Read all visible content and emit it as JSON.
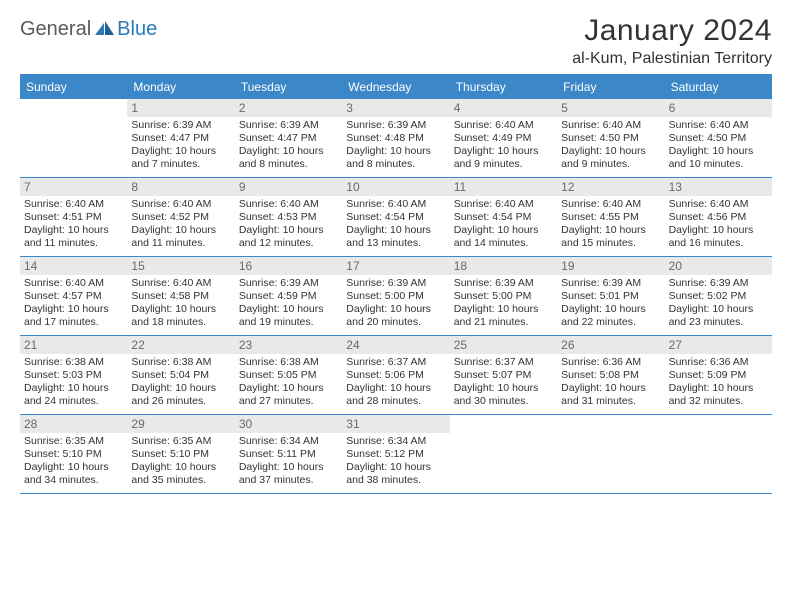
{
  "brand": {
    "general": "General",
    "blue": "Blue"
  },
  "colors": {
    "accent": "#3b87c8",
    "headerBg": "#3b87c8",
    "dayNumBg": "#e9e9e9",
    "text": "#333333"
  },
  "title": "January 2024",
  "subtitle": "al-Kum, Palestinian Territory",
  "weekdays": [
    "Sunday",
    "Monday",
    "Tuesday",
    "Wednesday",
    "Thursday",
    "Friday",
    "Saturday"
  ],
  "weeks": [
    [
      {
        "n": "",
        "sr": "",
        "ss": "",
        "d1": "",
        "d2": ""
      },
      {
        "n": "1",
        "sr": "Sunrise: 6:39 AM",
        "ss": "Sunset: 4:47 PM",
        "d1": "Daylight: 10 hours",
        "d2": "and 7 minutes."
      },
      {
        "n": "2",
        "sr": "Sunrise: 6:39 AM",
        "ss": "Sunset: 4:47 PM",
        "d1": "Daylight: 10 hours",
        "d2": "and 8 minutes."
      },
      {
        "n": "3",
        "sr": "Sunrise: 6:39 AM",
        "ss": "Sunset: 4:48 PM",
        "d1": "Daylight: 10 hours",
        "d2": "and 8 minutes."
      },
      {
        "n": "4",
        "sr": "Sunrise: 6:40 AM",
        "ss": "Sunset: 4:49 PM",
        "d1": "Daylight: 10 hours",
        "d2": "and 9 minutes."
      },
      {
        "n": "5",
        "sr": "Sunrise: 6:40 AM",
        "ss": "Sunset: 4:50 PM",
        "d1": "Daylight: 10 hours",
        "d2": "and 9 minutes."
      },
      {
        "n": "6",
        "sr": "Sunrise: 6:40 AM",
        "ss": "Sunset: 4:50 PM",
        "d1": "Daylight: 10 hours",
        "d2": "and 10 minutes."
      }
    ],
    [
      {
        "n": "7",
        "sr": "Sunrise: 6:40 AM",
        "ss": "Sunset: 4:51 PM",
        "d1": "Daylight: 10 hours",
        "d2": "and 11 minutes."
      },
      {
        "n": "8",
        "sr": "Sunrise: 6:40 AM",
        "ss": "Sunset: 4:52 PM",
        "d1": "Daylight: 10 hours",
        "d2": "and 11 minutes."
      },
      {
        "n": "9",
        "sr": "Sunrise: 6:40 AM",
        "ss": "Sunset: 4:53 PM",
        "d1": "Daylight: 10 hours",
        "d2": "and 12 minutes."
      },
      {
        "n": "10",
        "sr": "Sunrise: 6:40 AM",
        "ss": "Sunset: 4:54 PM",
        "d1": "Daylight: 10 hours",
        "d2": "and 13 minutes."
      },
      {
        "n": "11",
        "sr": "Sunrise: 6:40 AM",
        "ss": "Sunset: 4:54 PM",
        "d1": "Daylight: 10 hours",
        "d2": "and 14 minutes."
      },
      {
        "n": "12",
        "sr": "Sunrise: 6:40 AM",
        "ss": "Sunset: 4:55 PM",
        "d1": "Daylight: 10 hours",
        "d2": "and 15 minutes."
      },
      {
        "n": "13",
        "sr": "Sunrise: 6:40 AM",
        "ss": "Sunset: 4:56 PM",
        "d1": "Daylight: 10 hours",
        "d2": "and 16 minutes."
      }
    ],
    [
      {
        "n": "14",
        "sr": "Sunrise: 6:40 AM",
        "ss": "Sunset: 4:57 PM",
        "d1": "Daylight: 10 hours",
        "d2": "and 17 minutes."
      },
      {
        "n": "15",
        "sr": "Sunrise: 6:40 AM",
        "ss": "Sunset: 4:58 PM",
        "d1": "Daylight: 10 hours",
        "d2": "and 18 minutes."
      },
      {
        "n": "16",
        "sr": "Sunrise: 6:39 AM",
        "ss": "Sunset: 4:59 PM",
        "d1": "Daylight: 10 hours",
        "d2": "and 19 minutes."
      },
      {
        "n": "17",
        "sr": "Sunrise: 6:39 AM",
        "ss": "Sunset: 5:00 PM",
        "d1": "Daylight: 10 hours",
        "d2": "and 20 minutes."
      },
      {
        "n": "18",
        "sr": "Sunrise: 6:39 AM",
        "ss": "Sunset: 5:00 PM",
        "d1": "Daylight: 10 hours",
        "d2": "and 21 minutes."
      },
      {
        "n": "19",
        "sr": "Sunrise: 6:39 AM",
        "ss": "Sunset: 5:01 PM",
        "d1": "Daylight: 10 hours",
        "d2": "and 22 minutes."
      },
      {
        "n": "20",
        "sr": "Sunrise: 6:39 AM",
        "ss": "Sunset: 5:02 PM",
        "d1": "Daylight: 10 hours",
        "d2": "and 23 minutes."
      }
    ],
    [
      {
        "n": "21",
        "sr": "Sunrise: 6:38 AM",
        "ss": "Sunset: 5:03 PM",
        "d1": "Daylight: 10 hours",
        "d2": "and 24 minutes."
      },
      {
        "n": "22",
        "sr": "Sunrise: 6:38 AM",
        "ss": "Sunset: 5:04 PM",
        "d1": "Daylight: 10 hours",
        "d2": "and 26 minutes."
      },
      {
        "n": "23",
        "sr": "Sunrise: 6:38 AM",
        "ss": "Sunset: 5:05 PM",
        "d1": "Daylight: 10 hours",
        "d2": "and 27 minutes."
      },
      {
        "n": "24",
        "sr": "Sunrise: 6:37 AM",
        "ss": "Sunset: 5:06 PM",
        "d1": "Daylight: 10 hours",
        "d2": "and 28 minutes."
      },
      {
        "n": "25",
        "sr": "Sunrise: 6:37 AM",
        "ss": "Sunset: 5:07 PM",
        "d1": "Daylight: 10 hours",
        "d2": "and 30 minutes."
      },
      {
        "n": "26",
        "sr": "Sunrise: 6:36 AM",
        "ss": "Sunset: 5:08 PM",
        "d1": "Daylight: 10 hours",
        "d2": "and 31 minutes."
      },
      {
        "n": "27",
        "sr": "Sunrise: 6:36 AM",
        "ss": "Sunset: 5:09 PM",
        "d1": "Daylight: 10 hours",
        "d2": "and 32 minutes."
      }
    ],
    [
      {
        "n": "28",
        "sr": "Sunrise: 6:35 AM",
        "ss": "Sunset: 5:10 PM",
        "d1": "Daylight: 10 hours",
        "d2": "and 34 minutes."
      },
      {
        "n": "29",
        "sr": "Sunrise: 6:35 AM",
        "ss": "Sunset: 5:10 PM",
        "d1": "Daylight: 10 hours",
        "d2": "and 35 minutes."
      },
      {
        "n": "30",
        "sr": "Sunrise: 6:34 AM",
        "ss": "Sunset: 5:11 PM",
        "d1": "Daylight: 10 hours",
        "d2": "and 37 minutes."
      },
      {
        "n": "31",
        "sr": "Sunrise: 6:34 AM",
        "ss": "Sunset: 5:12 PM",
        "d1": "Daylight: 10 hours",
        "d2": "and 38 minutes."
      },
      {
        "n": "",
        "sr": "",
        "ss": "",
        "d1": "",
        "d2": ""
      },
      {
        "n": "",
        "sr": "",
        "ss": "",
        "d1": "",
        "d2": ""
      },
      {
        "n": "",
        "sr": "",
        "ss": "",
        "d1": "",
        "d2": ""
      }
    ]
  ]
}
